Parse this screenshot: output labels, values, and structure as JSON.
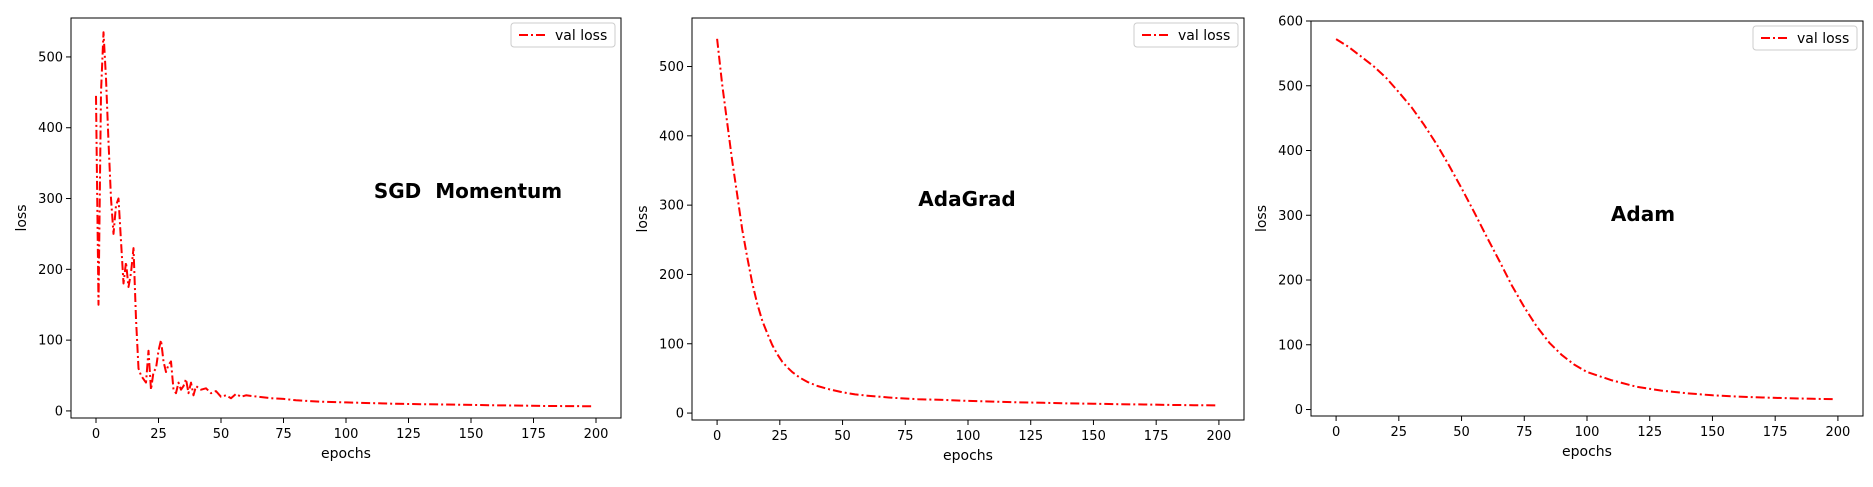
{
  "colors": {
    "series": "#ff0000",
    "axes": "#000000",
    "legend_border": "#cccccc"
  },
  "chart_data": [
    {
      "type": "line",
      "annotation": "SGD  Momentum",
      "xlabel": "epochs",
      "ylabel": "loss",
      "xlim": [
        -10,
        210
      ],
      "ylim": [
        -10,
        555
      ],
      "xticks": [
        0,
        25,
        50,
        75,
        100,
        125,
        150,
        175,
        200
      ],
      "yticks": [
        0,
        100,
        200,
        300,
        400,
        500
      ],
      "grid": false,
      "legend": "top-right",
      "series": [
        {
          "name": "val loss",
          "style": "dashdot",
          "x": [
            0,
            1,
            2,
            3,
            4,
            5,
            6,
            7,
            8,
            9,
            10,
            11,
            12,
            13,
            14,
            15,
            16,
            17,
            18,
            19,
            20,
            21,
            22,
            23,
            24,
            25,
            26,
            27,
            28,
            29,
            30,
            31,
            32,
            33,
            34,
            35,
            36,
            37,
            38,
            39,
            40,
            42,
            44,
            46,
            48,
            50,
            52,
            54,
            56,
            58,
            60,
            65,
            70,
            75,
            80,
            90,
            100,
            110,
            120,
            130,
            140,
            150,
            160,
            170,
            180,
            190,
            199
          ],
          "y": [
            445,
            150,
            450,
            535,
            470,
            380,
            300,
            250,
            290,
            300,
            240,
            180,
            210,
            175,
            195,
            230,
            130,
            60,
            50,
            45,
            40,
            85,
            30,
            55,
            60,
            85,
            100,
            70,
            55,
            65,
            70,
            30,
            25,
            40,
            30,
            35,
            45,
            25,
            40,
            22,
            35,
            30,
            32,
            25,
            28,
            20,
            22,
            18,
            24,
            20,
            22,
            20,
            18,
            17,
            15,
            13,
            12,
            11,
            10,
            9.5,
            9,
            8.5,
            8,
            7.5,
            7,
            6.8,
            6.5
          ]
        }
      ]
    },
    {
      "type": "line",
      "annotation": "AdaGrad",
      "xlabel": "epochs",
      "ylabel": "loss",
      "xlim": [
        -10,
        210
      ],
      "ylim": [
        -10,
        570
      ],
      "xticks": [
        0,
        25,
        50,
        75,
        100,
        125,
        150,
        175,
        200
      ],
      "yticks": [
        0,
        100,
        200,
        300,
        400,
        500
      ],
      "grid": false,
      "legend": "top-right",
      "series": [
        {
          "name": "val loss",
          "style": "dashdot",
          "x": [
            0,
            2,
            4,
            6,
            8,
            10,
            12,
            14,
            16,
            18,
            20,
            22,
            24,
            26,
            28,
            30,
            33,
            36,
            40,
            45,
            50,
            55,
            60,
            70,
            80,
            90,
            100,
            110,
            120,
            130,
            140,
            150,
            160,
            170,
            180,
            190,
            199
          ],
          "y": [
            540,
            475,
            420,
            365,
            315,
            265,
            225,
            188,
            158,
            133,
            115,
            98,
            85,
            74,
            66,
            59,
            51,
            45,
            39,
            34,
            30,
            27,
            25,
            22,
            20,
            19,
            17.5,
            16.5,
            15.5,
            14.8,
            14,
            13.5,
            12.8,
            12.3,
            11.8,
            11.3,
            11
          ]
        }
      ]
    },
    {
      "type": "line",
      "annotation": "Adam",
      "xlabel": "epochs",
      "ylabel": "loss",
      "xlim": [
        -10,
        210
      ],
      "ylim": [
        -10,
        600
      ],
      "xticks": [
        0,
        25,
        50,
        75,
        100,
        125,
        150,
        175,
        200
      ],
      "yticks": [
        0,
        100,
        200,
        300,
        400,
        500,
        600
      ],
      "grid": false,
      "legend": "top-right",
      "series": [
        {
          "name": "val loss",
          "style": "dashdot",
          "x": [
            0,
            5,
            10,
            15,
            20,
            25,
            30,
            35,
            40,
            45,
            50,
            55,
            60,
            65,
            70,
            75,
            80,
            85,
            90,
            95,
            100,
            110,
            120,
            130,
            140,
            150,
            160,
            170,
            180,
            190,
            199
          ],
          "y": [
            572,
            560,
            545,
            530,
            512,
            490,
            467,
            440,
            410,
            377,
            342,
            305,
            267,
            230,
            192,
            158,
            128,
            103,
            84,
            69,
            58,
            45,
            35,
            29,
            25,
            22,
            20,
            18.5,
            17.5,
            16.5,
            16
          ]
        }
      ]
    }
  ]
}
